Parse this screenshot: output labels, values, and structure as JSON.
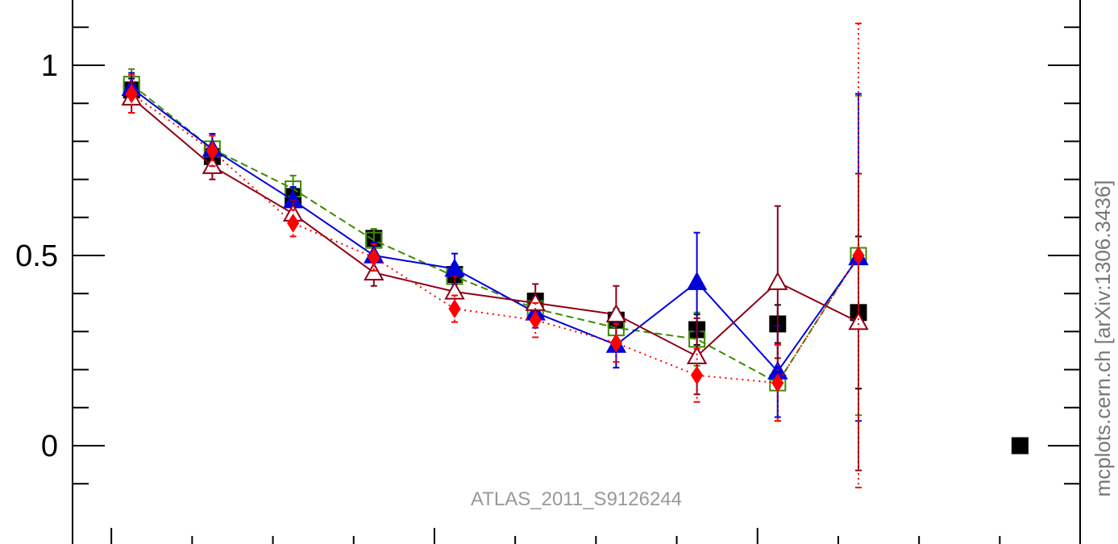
{
  "chart_data": {
    "type": "scatter",
    "ylim": [
      -0.21,
      1.17
    ],
    "xlim": [
      0.5,
      12.3
    ],
    "yticks": [
      {
        "v": 0,
        "label": "0"
      },
      {
        "v": 0.5,
        "label": "0.5"
      },
      {
        "v": 1,
        "label": "1"
      }
    ],
    "y_minor_ticks": [
      -0.1,
      0.1,
      0.2,
      0.3,
      0.4,
      0.6,
      0.7,
      0.8,
      0.9,
      1.1
    ],
    "x_major_ticks": [
      0.75,
      4.75,
      8.75,
      12.75
    ],
    "x_minor_ticks": [
      1.75,
      2.75,
      3.75,
      5.75,
      6.75,
      7.75,
      9.75,
      10.75,
      11.75
    ],
    "x": [
      1,
      2,
      3,
      4,
      5,
      6,
      7,
      8,
      9,
      10
    ],
    "series": [
      {
        "color": "#000000",
        "marker": "square-filled",
        "line": "none",
        "y": [
          0.935,
          0.76,
          0.655,
          0.545,
          0.45,
          0.38,
          0.33,
          0.305,
          0.32,
          0.35
        ],
        "yerr": [
          0.03,
          0.03,
          0.02,
          0.02,
          0.02,
          0.02,
          0.02,
          0.04,
          0.05,
          0.2
        ]
      },
      {
        "color": "#3c8c00",
        "marker": "square-open",
        "line": "dashed",
        "y": [
          0.95,
          0.78,
          0.675,
          0.54,
          0.445,
          0.36,
          0.31,
          0.28,
          0.165,
          0.5
        ],
        "yerr": [
          0.04,
          0.035,
          0.035,
          0.03,
          0.03,
          0.03,
          0.05,
          0.07,
          0.1,
          0.42
        ]
      },
      {
        "color": "#0000dd",
        "marker": "triangle-filled",
        "line": "solid",
        "y": [
          0.94,
          0.78,
          0.645,
          0.5,
          0.465,
          0.35,
          0.265,
          0.43,
          0.195,
          0.495
        ],
        "yerr": [
          0.04,
          0.04,
          0.035,
          0.035,
          0.04,
          0.04,
          0.06,
          0.13,
          0.12,
          0.43
        ]
      },
      {
        "color": "#8b0016",
        "marker": "triangle-open",
        "line": "solid",
        "y": [
          0.915,
          0.735,
          0.61,
          0.455,
          0.405,
          0.375,
          0.345,
          0.235,
          0.43,
          0.325
        ],
        "yerr": [
          0.04,
          0.035,
          0.035,
          0.035,
          0.04,
          0.05,
          0.075,
          0.1,
          0.2,
          0.39
        ]
      },
      {
        "color": "#ff0000",
        "marker": "diamond-filled",
        "line": "dotted",
        "y": [
          0.925,
          0.775,
          0.585,
          0.495,
          0.36,
          0.33,
          0.27,
          0.185,
          0.165,
          0.5
        ],
        "yerr": [
          0.05,
          0.04,
          0.035,
          0.035,
          0.035,
          0.045,
          0.05,
          0.07,
          0.1,
          0.61
        ]
      }
    ],
    "outlier_marker": {
      "x": 12.0,
      "y": 0.0,
      "color": "#000000",
      "marker": "square-filled"
    }
  },
  "watermark": "ATLAS_2011_S9126244",
  "side_label": "mcplots.cern.ch [arXiv:1306.3436]"
}
